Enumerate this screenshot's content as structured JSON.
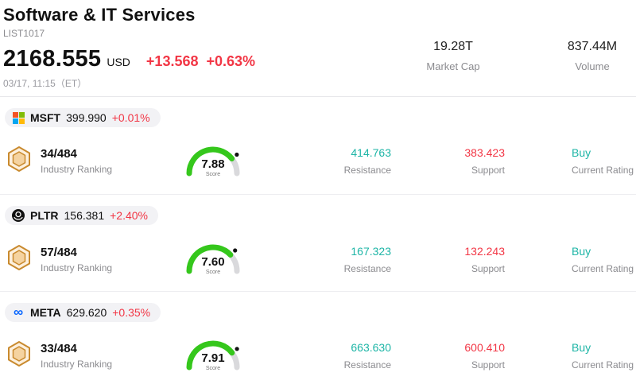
{
  "header": {
    "title": "Software & IT Services",
    "list_id": "LIST1017",
    "price": "2168.555",
    "currency": "USD",
    "change_abs": "+13.568",
    "change_pct": "+0.63%",
    "timestamp": "03/17, 11:15（ET）",
    "market_cap_value": "19.28T",
    "market_cap_label": "Market Cap",
    "volume_value": "837.44M",
    "volume_label": "Volume"
  },
  "labels": {
    "industry_ranking": "Industry Ranking",
    "score": "Score",
    "resistance": "Resistance",
    "support": "Support",
    "current_rating": "Current Rating"
  },
  "colors": {
    "up_red": "#f23645",
    "teal": "#1db5a6",
    "gauge_green": "#35c71c",
    "gauge_gray": "#d9d9dc"
  },
  "stocks": [
    {
      "ticker": "MSFT",
      "icon": "microsoft-logo",
      "price": "399.990",
      "change": "+0.01%",
      "rank": "34/484",
      "score": 7.88,
      "score_display": "7.88",
      "resistance": "414.763",
      "support": "383.423",
      "rating": "Buy"
    },
    {
      "ticker": "PLTR",
      "icon": "palantir-logo",
      "price": "156.381",
      "change": "+2.40%",
      "rank": "57/484",
      "score": 7.6,
      "score_display": "7.60",
      "resistance": "167.323",
      "support": "132.243",
      "rating": "Buy"
    },
    {
      "ticker": "META",
      "icon": "meta-logo",
      "price": "629.620",
      "change": "+0.35%",
      "rank": "33/484",
      "score": 7.91,
      "score_display": "7.91",
      "resistance": "663.630",
      "support": "600.410",
      "rating": "Buy"
    }
  ]
}
